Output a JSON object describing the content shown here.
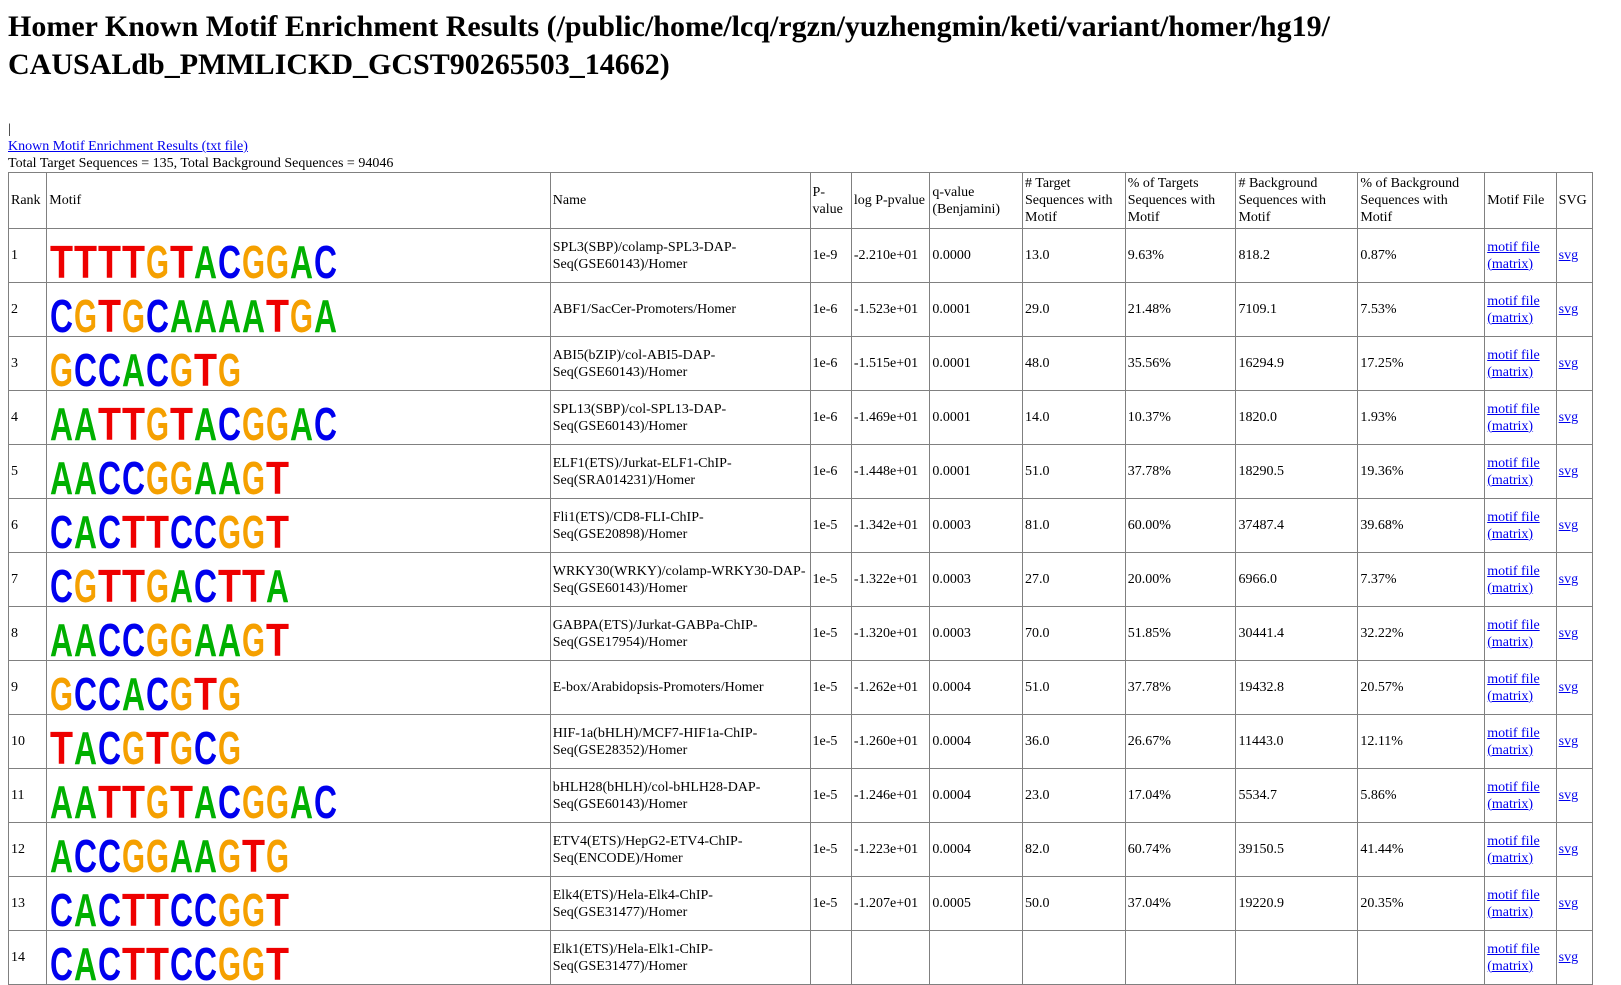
{
  "page_title": "Homer Known Motif Enrichment Results (/public/home/lcq/rgzn/yuzhengmin/keti/variant/homer/hg19/ CAUSALdb_PMMLICKD_GCST90265503_14662)",
  "caret_text": "|",
  "txt_link": "Known Motif Enrichment Results (txt file)",
  "totals": "Total Target Sequences = 135, Total Background Sequences = 94046",
  "headers": {
    "rank": "Rank",
    "motif": "Motif",
    "name": "Name",
    "pvalue": "P-value",
    "logp": "log P-pvalue",
    "qvalue": "q-value (Benjamini)",
    "target_n": "# Target Sequences with Motif",
    "target_pct": "% of Targets Sequences with Motif",
    "bg_n": "# Background Sequences with Motif",
    "bg_pct": "% of Background Sequences with Motif",
    "motif_file": "Motif File",
    "svg": "SVG"
  },
  "motif_file_link": "motif file (matrix)",
  "svg_link": "svg",
  "colors": {
    "A": "#00b000",
    "C": "#0000ee",
    "G": "#f5a000",
    "T": "#ee0000"
  },
  "rows": [
    {
      "rank": "1",
      "name": "SPL3(SBP)/colamp-SPL3-DAP-Seq(GSE60143)/Homer",
      "p": "1e-9",
      "logp": "-2.210e+01",
      "q": "0.0000",
      "tn": "13.0",
      "tp": "9.63%",
      "bn": "818.2",
      "bp": "0.87%",
      "logo": "TTTTGTACGGAC"
    },
    {
      "rank": "2",
      "name": "ABF1/SacCer-Promoters/Homer",
      "p": "1e-6",
      "logp": "-1.523e+01",
      "q": "0.0001",
      "tn": "29.0",
      "tp": "21.48%",
      "bn": "7109.1",
      "bp": "7.53%",
      "logo": "CGTGCAAAATGA"
    },
    {
      "rank": "3",
      "name": "ABI5(bZIP)/col-ABI5-DAP-Seq(GSE60143)/Homer",
      "p": "1e-6",
      "logp": "-1.515e+01",
      "q": "0.0001",
      "tn": "48.0",
      "tp": "35.56%",
      "bn": "16294.9",
      "bp": "17.25%",
      "logo": "GCCACGTG"
    },
    {
      "rank": "4",
      "name": "SPL13(SBP)/col-SPL13-DAP-Seq(GSE60143)/Homer",
      "p": "1e-6",
      "logp": "-1.469e+01",
      "q": "0.0001",
      "tn": "14.0",
      "tp": "10.37%",
      "bn": "1820.0",
      "bp": "1.93%",
      "logo": "AATTGTACGGAC"
    },
    {
      "rank": "5",
      "name": "ELF1(ETS)/Jurkat-ELF1-ChIP-Seq(SRA014231)/Homer",
      "p": "1e-6",
      "logp": "-1.448e+01",
      "q": "0.0001",
      "tn": "51.0",
      "tp": "37.78%",
      "bn": "18290.5",
      "bp": "19.36%",
      "logo": "AACCGGAAGT"
    },
    {
      "rank": "6",
      "name": "Fli1(ETS)/CD8-FLI-ChIP-Seq(GSE20898)/Homer",
      "p": "1e-5",
      "logp": "-1.342e+01",
      "q": "0.0003",
      "tn": "81.0",
      "tp": "60.00%",
      "bn": "37487.4",
      "bp": "39.68%",
      "logo": "CACTTCCGGT"
    },
    {
      "rank": "7",
      "name": "WRKY30(WRKY)/colamp-WRKY30-DAP-Seq(GSE60143)/Homer",
      "p": "1e-5",
      "logp": "-1.322e+01",
      "q": "0.0003",
      "tn": "27.0",
      "tp": "20.00%",
      "bn": "6966.0",
      "bp": "7.37%",
      "logo": "CGTTGACTTA"
    },
    {
      "rank": "8",
      "name": "GABPA(ETS)/Jurkat-GABPa-ChIP-Seq(GSE17954)/Homer",
      "p": "1e-5",
      "logp": "-1.320e+01",
      "q": "0.0003",
      "tn": "70.0",
      "tp": "51.85%",
      "bn": "30441.4",
      "bp": "32.22%",
      "logo": "AACCGGAAGT"
    },
    {
      "rank": "9",
      "name": "E-box/Arabidopsis-Promoters/Homer",
      "p": "1e-5",
      "logp": "-1.262e+01",
      "q": "0.0004",
      "tn": "51.0",
      "tp": "37.78%",
      "bn": "19432.8",
      "bp": "20.57%",
      "logo": "GCCACGTG"
    },
    {
      "rank": "10",
      "name": "HIF-1a(bHLH)/MCF7-HIF1a-ChIP-Seq(GSE28352)/Homer",
      "p": "1e-5",
      "logp": "-1.260e+01",
      "q": "0.0004",
      "tn": "36.0",
      "tp": "26.67%",
      "bn": "11443.0",
      "bp": "12.11%",
      "logo": "TACGTGCG"
    },
    {
      "rank": "11",
      "name": "bHLH28(bHLH)/col-bHLH28-DAP-Seq(GSE60143)/Homer",
      "p": "1e-5",
      "logp": "-1.246e+01",
      "q": "0.0004",
      "tn": "23.0",
      "tp": "17.04%",
      "bn": "5534.7",
      "bp": "5.86%",
      "logo": "AATTGTACGGAC"
    },
    {
      "rank": "12",
      "name": "ETV4(ETS)/HepG2-ETV4-ChIP-Seq(ENCODE)/Homer",
      "p": "1e-5",
      "logp": "-1.223e+01",
      "q": "0.0004",
      "tn": "82.0",
      "tp": "60.74%",
      "bn": "39150.5",
      "bp": "41.44%",
      "logo": "ACCGGAAGTG"
    },
    {
      "rank": "13",
      "name": "Elk4(ETS)/Hela-Elk4-ChIP-Seq(GSE31477)/Homer",
      "p": "1e-5",
      "logp": "-1.207e+01",
      "q": "0.0005",
      "tn": "50.0",
      "tp": "37.04%",
      "bn": "19220.9",
      "bp": "20.35%",
      "logo": "CACTTCCGGT"
    },
    {
      "rank": "14",
      "name": "Elk1(ETS)/Hela-Elk1-ChIP-Seq(GSE31477)/Homer",
      "p": "",
      "logp": "",
      "q": "",
      "tn": "",
      "tp": "",
      "bn": "",
      "bp": "",
      "logo": "CACTTCCGGT"
    }
  ]
}
